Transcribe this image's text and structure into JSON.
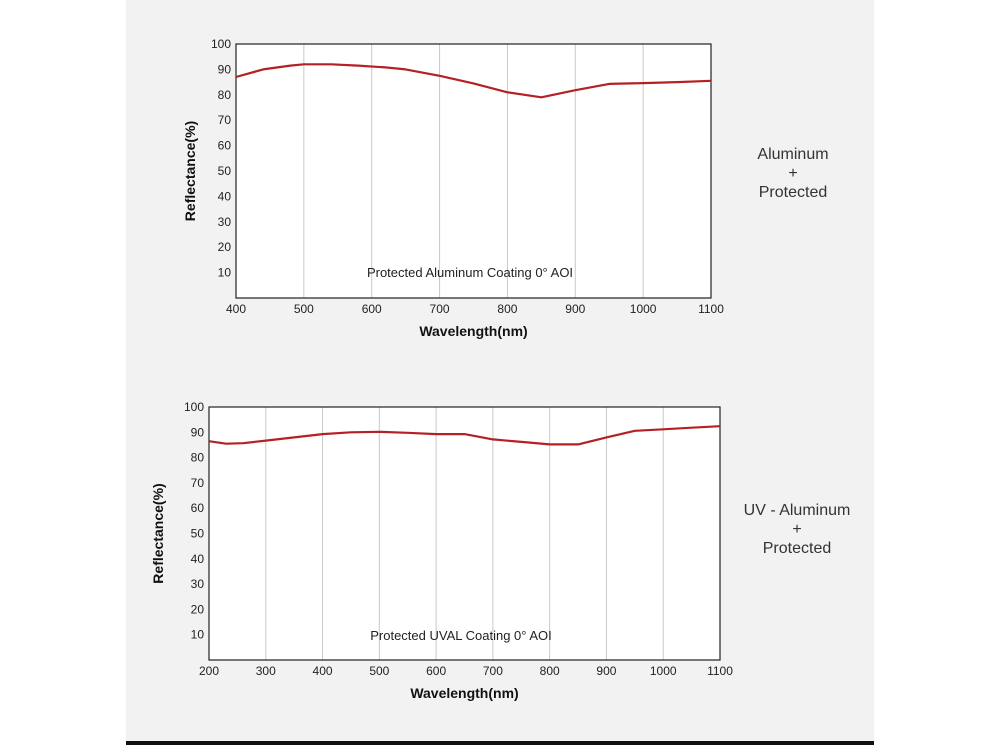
{
  "colors": {
    "line": "#b52025",
    "grid": "#c8c8c8",
    "frame": "#222222",
    "panel": "#f2f2f2"
  },
  "chart_data": [
    {
      "type": "line",
      "annotation": "Protected Aluminum Coating  0°  AOI",
      "xlabel": "Wavelength(nm)",
      "ylabel": "Reflectance(%)",
      "xlim": [
        400,
        1100
      ],
      "ylim": [
        0,
        100
      ],
      "xticks": [
        400,
        500,
        600,
        700,
        800,
        900,
        1000,
        1100
      ],
      "yticks": [
        10,
        20,
        30,
        40,
        50,
        60,
        70,
        80,
        90,
        100
      ],
      "x": [
        400,
        440,
        480,
        500,
        540,
        580,
        620,
        650,
        700,
        750,
        800,
        850,
        900,
        950,
        1000,
        1050,
        1100
      ],
      "y": [
        87,
        90,
        91.5,
        92,
        92,
        91.5,
        90.8,
        90,
        87.5,
        84.5,
        81,
        79,
        81.8,
        84.3,
        84.6,
        85,
        85.5
      ],
      "side_label": [
        "Aluminum",
        "+",
        "Protected"
      ]
    },
    {
      "type": "line",
      "annotation": "Protected UVAL Coating  0°  AOI",
      "xlabel": "Wavelength(nm)",
      "ylabel": "Reflectance(%)",
      "xlim": [
        200,
        1100
      ],
      "ylim": [
        0,
        100
      ],
      "xticks": [
        200,
        300,
        400,
        500,
        600,
        700,
        800,
        900,
        1000,
        1100
      ],
      "yticks": [
        10,
        20,
        30,
        40,
        50,
        60,
        70,
        80,
        90,
        100
      ],
      "x": [
        200,
        230,
        260,
        300,
        350,
        400,
        450,
        500,
        550,
        600,
        650,
        700,
        750,
        800,
        850,
        900,
        950,
        1000,
        1050,
        1100
      ],
      "y": [
        86.5,
        85.5,
        85.7,
        86.7,
        88,
        89.3,
        90,
        90.2,
        89.8,
        89.3,
        89.3,
        87.2,
        86.2,
        85.2,
        85.2,
        88,
        90.6,
        91.2,
        91.8,
        92.4
      ],
      "side_label": [
        "UV  - Aluminum",
        "+",
        "Protected"
      ]
    }
  ]
}
